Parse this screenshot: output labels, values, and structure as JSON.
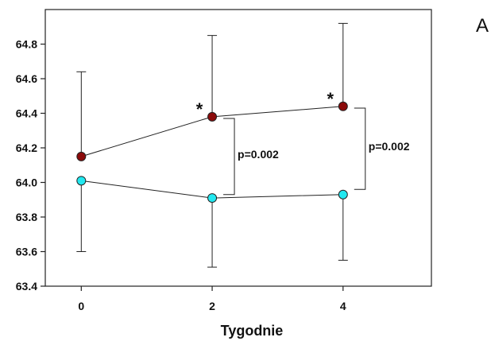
{
  "chart_data": {
    "type": "line",
    "title": "",
    "panel_label": "A",
    "xlabel": "Tygodnie",
    "ylabel": "",
    "x": [
      0,
      2,
      4
    ],
    "x_ticks": [
      0,
      2,
      4
    ],
    "x_tick_labels": [
      "0",
      "2",
      "4"
    ],
    "xlim": [
      -0.55,
      5.35
    ],
    "y_ticks": [
      63.4,
      63.6,
      63.8,
      64.0,
      64.2,
      64.4,
      64.6,
      64.8
    ],
    "y_tick_labels": [
      "63.4",
      "63.6",
      "63.8",
      "64.0",
      "64.2",
      "64.4",
      "64.6",
      "64.8"
    ],
    "ylim": [
      63.4,
      65.0
    ],
    "grid": false,
    "series": [
      {
        "name": "dark-red",
        "color": "#8B0A0A",
        "values": [
          64.15,
          64.38,
          64.44
        ],
        "error_upper": [
          64.64,
          64.85,
          64.92
        ],
        "error_lower": [
          null,
          null,
          null
        ]
      },
      {
        "name": "cyan",
        "color": "#22E8F0",
        "values": [
          64.01,
          63.91,
          63.93
        ],
        "error_upper": [
          null,
          null,
          null
        ],
        "error_lower": [
          63.6,
          63.51,
          63.55
        ]
      }
    ],
    "significance_markers": [
      {
        "x": 2,
        "text": "*"
      },
      {
        "x": 4,
        "text": "*"
      }
    ],
    "comparison_brackets": [
      {
        "x": 2,
        "y_top": 64.37,
        "y_bottom": 63.93,
        "label": "p=0.002"
      },
      {
        "x": 4,
        "y_top": 64.43,
        "y_bottom": 63.96,
        "label": "p=0.002"
      }
    ]
  }
}
